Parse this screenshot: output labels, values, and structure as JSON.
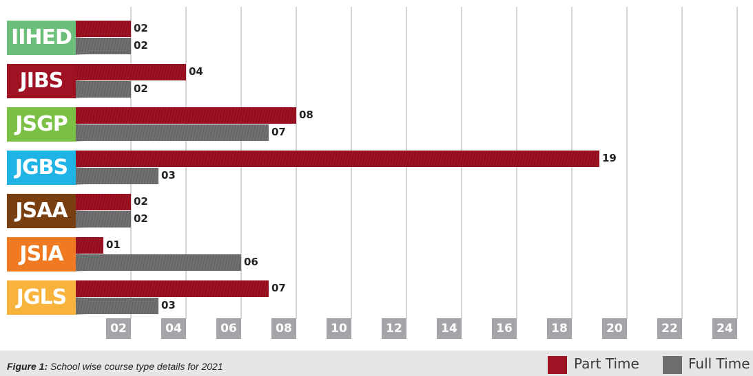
{
  "chart_data": {
    "type": "bar",
    "orientation": "horizontal",
    "categories": [
      "IIHED",
      "JIBS",
      "JSGP",
      "JGBS",
      "JSAA",
      "JSIA",
      "JGLS"
    ],
    "category_colors": [
      "#6cbf7a",
      "#9e1224",
      "#7bbf44",
      "#1fb3e6",
      "#7a3f10",
      "#f07a22",
      "#f7b33b"
    ],
    "series": [
      {
        "name": "Part Time",
        "color": "#9e1224",
        "values": [
          2,
          4,
          8,
          19,
          2,
          1,
          7
        ],
        "labels": [
          "02",
          "04",
          "08",
          "19",
          "02",
          "01",
          "07"
        ]
      },
      {
        "name": "Full Time",
        "color": "#6e6e6e",
        "values": [
          2,
          2,
          7,
          3,
          2,
          6,
          3
        ],
        "labels": [
          "02",
          "02",
          "07",
          "03",
          "02",
          "06",
          "03"
        ]
      }
    ],
    "xlim": [
      0,
      24
    ],
    "x_ticks": [
      "02",
      "04",
      "06",
      "08",
      "10",
      "12",
      "14",
      "16",
      "18",
      "20",
      "22",
      "24"
    ],
    "grid": true,
    "legend_position": "bottom-right"
  },
  "caption": {
    "prefix": "Figure 1:",
    "text": " School wise course type details for 2021"
  }
}
